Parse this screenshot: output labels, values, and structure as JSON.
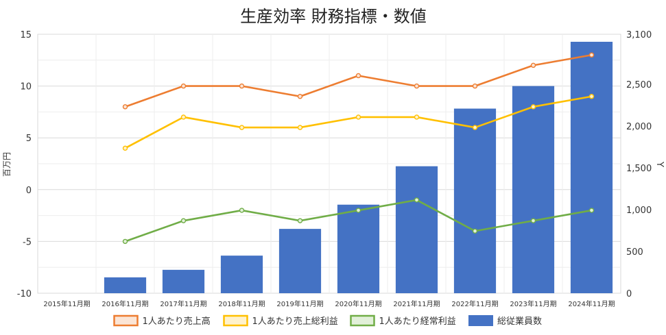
{
  "chart_data": {
    "type": "bar+line",
    "title": "生産効率 財務指標・数値",
    "categories": [
      "2015年11月期",
      "2016年11月期",
      "2017年11月期",
      "2018年11月期",
      "2019年11月期",
      "2020年11月期",
      "2021年11月期",
      "2022年11月期",
      "2023年11月期",
      "2024年11月期"
    ],
    "y_left": {
      "label": "百万円",
      "ticks": [
        "15",
        "10",
        "5",
        "0",
        "-5",
        "-10"
      ],
      "range": [
        -10,
        15
      ]
    },
    "y_right": {
      "label": "Y",
      "ticks": [
        "3,100",
        "2,500",
        "2,000",
        "1,500",
        "1,000",
        "500",
        "0"
      ],
      "range": [
        0,
        3100
      ]
    },
    "grid": true,
    "legend_position": "bottom",
    "series": [
      {
        "name": "1人あたり売上高",
        "type": "line",
        "axis": "left",
        "color": "#ed7d31",
        "fill": "#fbe5d6",
        "values": [
          null,
          8,
          10,
          10,
          9,
          11,
          10,
          10,
          12,
          13
        ]
      },
      {
        "name": "1人あたり売上総利益",
        "type": "line",
        "axis": "left",
        "color": "#ffc000",
        "fill": "#fff2cc",
        "values": [
          null,
          4,
          7,
          6,
          6,
          7,
          7,
          6,
          8,
          9
        ]
      },
      {
        "name": "1人あたり経常利益",
        "type": "line",
        "axis": "left",
        "color": "#70ad47",
        "fill": "#e2f0d9",
        "values": [
          null,
          -5,
          -3,
          -2,
          -3,
          -2,
          -1,
          -4,
          -3,
          -2
        ]
      },
      {
        "name": "総従業員数",
        "type": "bar",
        "axis": "right",
        "color": "#4472c4",
        "values": [
          0,
          190,
          280,
          450,
          770,
          1060,
          1520,
          2210,
          2480,
          3010
        ]
      }
    ]
  }
}
